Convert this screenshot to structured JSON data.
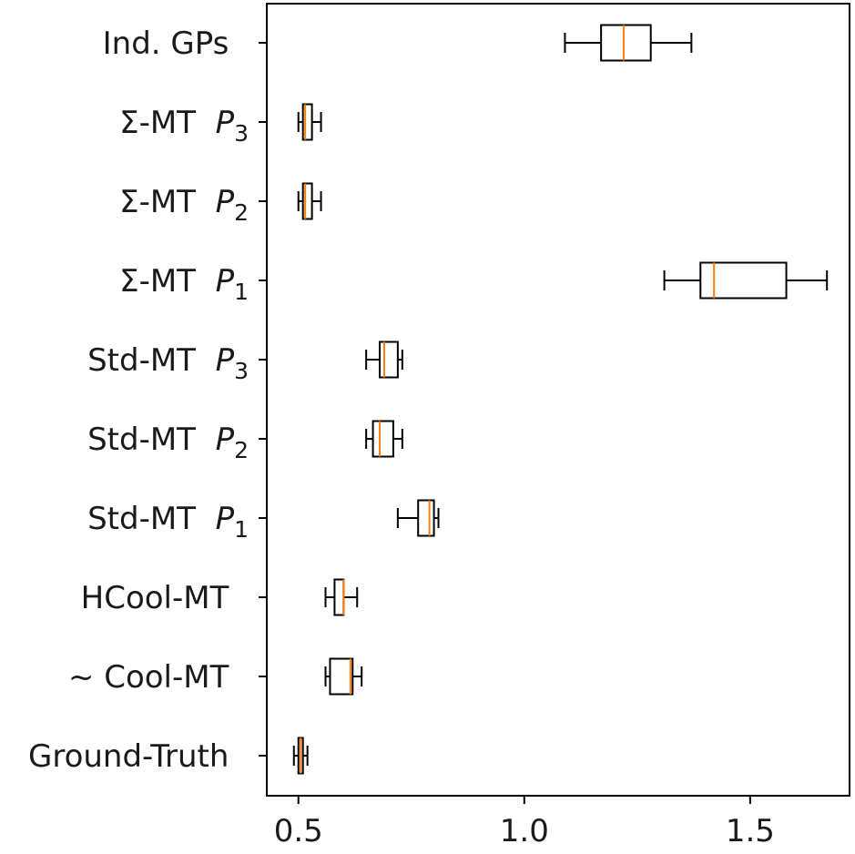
{
  "chart_data": {
    "type": "boxplot",
    "orientation": "horizontal",
    "title": "",
    "xlabel": "",
    "ylabel": "",
    "xlim": [
      0.43,
      1.72
    ],
    "xticks": [
      {
        "value": 0.5,
        "label": "0.5"
      },
      {
        "value": 1.0,
        "label": "1.0"
      },
      {
        "value": 1.5,
        "label": "1.5"
      }
    ],
    "grid": false,
    "legend": "none",
    "colors": {
      "box": "#000000",
      "median": "#ff7f0e"
    },
    "categories": [
      {
        "id": "ind-gps",
        "prefix": "Ind. GPs",
        "model": "",
        "sub": ""
      },
      {
        "id": "sigma-mt-p3",
        "prefix": "Σ-MT",
        "model": "P",
        "sub": "3"
      },
      {
        "id": "sigma-mt-p2",
        "prefix": "Σ-MT",
        "model": "P",
        "sub": "2"
      },
      {
        "id": "sigma-mt-p1",
        "prefix": "Σ-MT",
        "model": "P",
        "sub": "1"
      },
      {
        "id": "std-mt-p3",
        "prefix": "Std-MT",
        "model": "P",
        "sub": "3"
      },
      {
        "id": "std-mt-p2",
        "prefix": "Std-MT",
        "model": "P",
        "sub": "2"
      },
      {
        "id": "std-mt-p1",
        "prefix": "Std-MT",
        "model": "P",
        "sub": "1"
      },
      {
        "id": "hcool-mt",
        "prefix": "HCool-MT",
        "model": "",
        "sub": ""
      },
      {
        "id": "cool-mt",
        "prefix": "~ Cool-MT",
        "model": "",
        "sub": ""
      },
      {
        "id": "ground-truth",
        "prefix": "Ground-Truth",
        "model": "",
        "sub": ""
      }
    ],
    "series": [
      {
        "category": "Ind. GPs",
        "whisker_low": 1.09,
        "q1": 1.17,
        "median": 1.22,
        "q3": 1.28,
        "whisker_high": 1.37
      },
      {
        "category": "Σ-MT P3",
        "whisker_low": 0.5,
        "q1": 0.51,
        "median": 0.515,
        "q3": 0.53,
        "whisker_high": 0.55
      },
      {
        "category": "Σ-MT P2",
        "whisker_low": 0.5,
        "q1": 0.51,
        "median": 0.515,
        "q3": 0.53,
        "whisker_high": 0.55
      },
      {
        "category": "Σ-MT P1",
        "whisker_low": 1.31,
        "q1": 1.39,
        "median": 1.42,
        "q3": 1.58,
        "whisker_high": 1.67
      },
      {
        "category": "Std-MT P3",
        "whisker_low": 0.65,
        "q1": 0.68,
        "median": 0.69,
        "q3": 0.72,
        "whisker_high": 0.73
      },
      {
        "category": "Std-MT P2",
        "whisker_low": 0.65,
        "q1": 0.665,
        "median": 0.68,
        "q3": 0.71,
        "whisker_high": 0.73
      },
      {
        "category": "Std-MT P1",
        "whisker_low": 0.72,
        "q1": 0.765,
        "median": 0.79,
        "q3": 0.8,
        "whisker_high": 0.81
      },
      {
        "category": "HCool-MT",
        "whisker_low": 0.56,
        "q1": 0.58,
        "median": 0.6,
        "q3": 0.6,
        "whisker_high": 0.63
      },
      {
        "category": "~ Cool-MT",
        "whisker_low": 0.56,
        "q1": 0.57,
        "median": 0.615,
        "q3": 0.62,
        "whisker_high": 0.64
      },
      {
        "category": "Ground-Truth",
        "whisker_low": 0.49,
        "q1": 0.5,
        "median": 0.505,
        "q3": 0.51,
        "whisker_high": 0.52
      }
    ]
  }
}
